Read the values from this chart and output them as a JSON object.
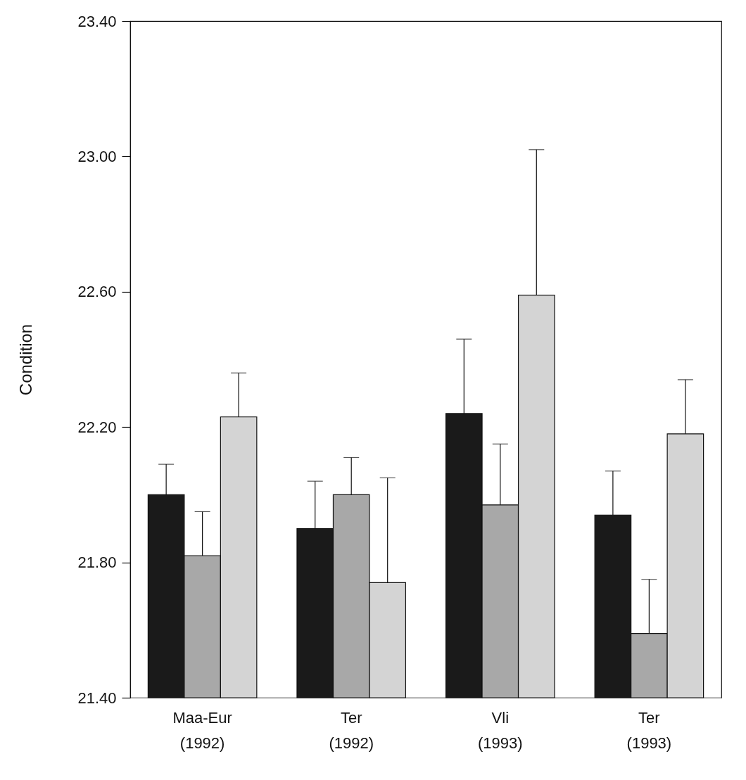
{
  "chart_data": {
    "type": "bar",
    "ylabel": "Condition",
    "categories": [
      "Maa-Eur (1992)",
      "Ter (1992)",
      "Vli (1993)",
      "Ter (1993)"
    ],
    "series": [
      {
        "color": "#1a1a1a",
        "values": [
          22.0,
          21.9,
          22.24,
          21.94
        ],
        "errors": [
          [
            22.0,
            22.09
          ],
          [
            21.9,
            22.04
          ],
          [
            22.24,
            22.46
          ],
          [
            21.94,
            22.07
          ]
        ]
      },
      {
        "color": "#a8a8a8",
        "values": [
          21.82,
          22.0,
          21.97,
          21.59
        ],
        "errors": [
          [
            21.82,
            21.95
          ],
          [
            22.0,
            22.11
          ],
          [
            21.97,
            22.15
          ],
          [
            21.59,
            21.75
          ]
        ]
      },
      {
        "color": "#d4d4d4",
        "values": [
          22.23,
          21.74,
          22.59,
          22.18
        ],
        "errors": [
          [
            22.23,
            22.36
          ],
          [
            21.74,
            22.05
          ],
          [
            22.59,
            23.02
          ],
          [
            22.18,
            22.34
          ]
        ]
      }
    ],
    "ylim": [
      21.4,
      23.4
    ],
    "yticks": [
      {
        "value": 21.4,
        "label": "21.40"
      },
      {
        "value": 21.8,
        "label": "21.80"
      },
      {
        "value": 22.2,
        "label": "22.20"
      },
      {
        "value": 22.6,
        "label": "22.60"
      },
      {
        "value": 23.0,
        "label": "23.00"
      },
      {
        "value": 23.4,
        "label": "23.40"
      }
    ],
    "grid": false,
    "legend": false
  }
}
